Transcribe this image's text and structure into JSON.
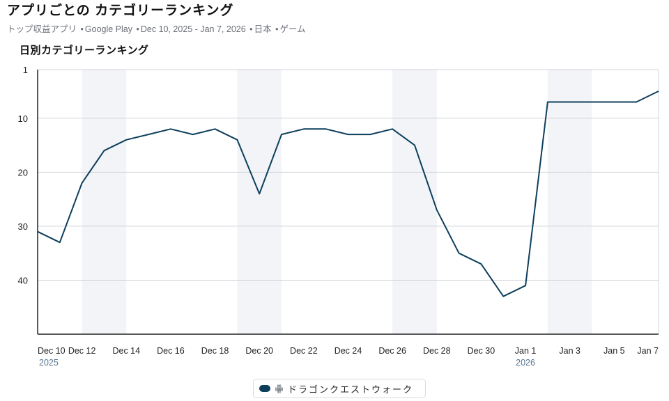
{
  "header": {
    "title": "アプリごとの カテゴリーランキング",
    "subtitle_parts": [
      "トップ収益アプリ",
      "Google Play",
      "Dec 10, 2025 - Jan 7, 2026",
      "日本",
      "ゲーム"
    ]
  },
  "chart_data": {
    "type": "line",
    "title": "日別カテゴリーランキング",
    "xlabel": "",
    "ylabel": "",
    "x": [
      "2025-12-10",
      "2025-12-11",
      "2025-12-12",
      "2025-12-13",
      "2025-12-14",
      "2025-12-15",
      "2025-12-16",
      "2025-12-17",
      "2025-12-18",
      "2025-12-19",
      "2025-12-20",
      "2025-12-21",
      "2025-12-22",
      "2025-12-23",
      "2025-12-24",
      "2025-12-25",
      "2025-12-26",
      "2025-12-27",
      "2025-12-28",
      "2025-12-29",
      "2025-12-30",
      "2025-12-31",
      "2026-01-01",
      "2026-01-02",
      "2026-01-03",
      "2026-01-04",
      "2026-01-05",
      "2026-01-06",
      "2026-01-07"
    ],
    "series": [
      {
        "name": "ドラゴンクエストウォーク",
        "color": "#0d3f5c",
        "values": [
          31,
          33,
          22,
          16,
          14,
          13,
          12,
          13,
          12,
          14,
          24,
          13,
          12,
          12,
          13,
          13,
          12,
          15,
          27,
          35,
          37,
          43,
          41,
          7,
          7,
          7,
          7,
          7,
          5
        ]
      }
    ],
    "y_ticks": [
      "1",
      "10",
      "20",
      "30",
      "40"
    ],
    "y_tick_values": [
      1,
      10,
      20,
      30,
      40
    ],
    "ylim": [
      1,
      50
    ],
    "y_inverted": true,
    "x_tick_labels": [
      {
        "label": "Dec 10",
        "date": "2025-12-10",
        "year": "2025"
      },
      {
        "label": "Dec 12",
        "date": "2025-12-12"
      },
      {
        "label": "Dec 14",
        "date": "2025-12-14"
      },
      {
        "label": "Dec 16",
        "date": "2025-12-16"
      },
      {
        "label": "Dec 18",
        "date": "2025-12-18"
      },
      {
        "label": "Dec 20",
        "date": "2025-12-20"
      },
      {
        "label": "Dec 22",
        "date": "2025-12-22"
      },
      {
        "label": "Dec 24",
        "date": "2025-12-24"
      },
      {
        "label": "Dec 26",
        "date": "2025-12-26"
      },
      {
        "label": "Dec 28",
        "date": "2025-12-28"
      },
      {
        "label": "Dec 30",
        "date": "2025-12-30"
      },
      {
        "label": "Jan 1",
        "date": "2026-01-01",
        "year": "2026"
      },
      {
        "label": "Jan 3",
        "date": "2026-01-03"
      },
      {
        "label": "Jan 5",
        "date": "2026-01-05"
      },
      {
        "label": "Jan 7",
        "date": "2026-01-07"
      }
    ],
    "weekend_bands": [
      [
        "2025-12-12",
        "2025-12-14"
      ],
      [
        "2025-12-19",
        "2025-12-21"
      ],
      [
        "2025-12-26",
        "2025-12-28"
      ],
      [
        "2026-01-02",
        "2026-01-04"
      ]
    ],
    "grid": true,
    "legend_position": "bottom-center"
  },
  "legend": {
    "platform_icon": "android-icon",
    "label": "ドラゴンクエストウォーク"
  }
}
